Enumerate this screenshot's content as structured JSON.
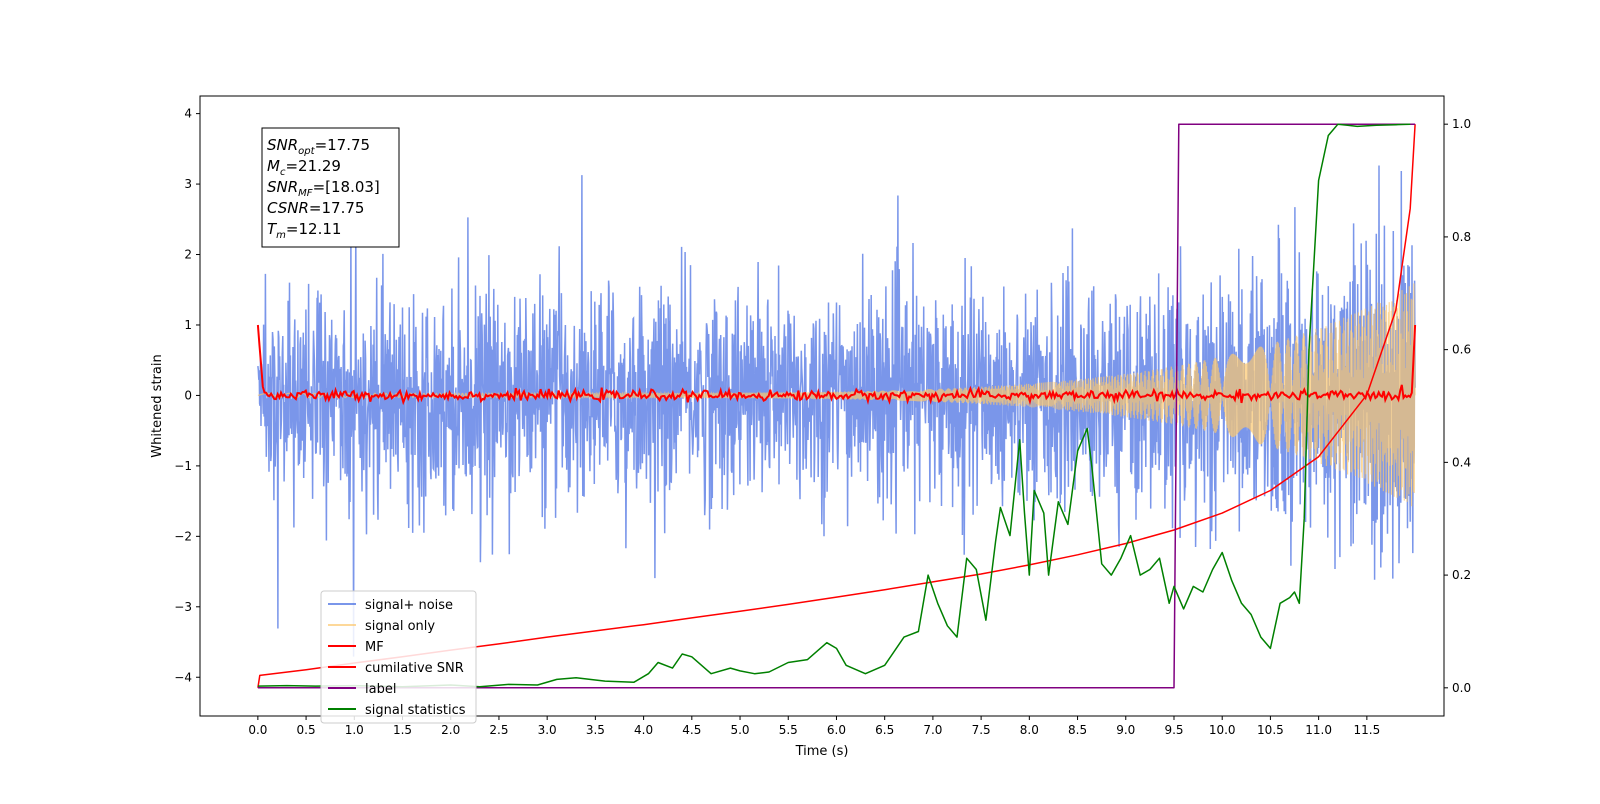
{
  "chart_data": {
    "type": "line",
    "xlabel": "Time (s)",
    "ylabel": "Whitened strain",
    "xlim": [
      -0.6,
      12.3
    ],
    "ylim": [
      -4.55,
      4.25
    ],
    "y2lim": [
      -0.05,
      1.05
    ],
    "x_ticks": [
      "0.0",
      "0.5",
      "1.0",
      "1.5",
      "2.0",
      "2.5",
      "3.0",
      "3.5",
      "4.0",
      "4.5",
      "5.0",
      "5.5",
      "6.0",
      "6.5",
      "7.0",
      "7.5",
      "8.0",
      "8.5",
      "9.0",
      "9.5",
      "10.0",
      "10.5",
      "11.0",
      "11.5"
    ],
    "y_ticks": [
      "4",
      "3",
      "2",
      "1",
      "0",
      "−1",
      "−2",
      "−3",
      "−4"
    ],
    "y2_ticks": [
      "1.0",
      "0.8",
      "0.6",
      "0.4",
      "0.2",
      "0.0"
    ],
    "grid": false,
    "legend_position": "lower-left",
    "annotation": {
      "lines": [
        {
          "sym": "SNR",
          "sub": "opt",
          "value": "=17.75"
        },
        {
          "sym": "M",
          "sub": "c",
          "value": "=21.29"
        },
        {
          "sym": "SNR",
          "sub": "MF",
          "value": "=[18.03]"
        },
        {
          "sym": "CSNR",
          "sub": "",
          "value": "=17.75"
        },
        {
          "sym": "T",
          "sub": "m",
          "value": "=12.11"
        }
      ]
    },
    "series": [
      {
        "name": "signal+ noise",
        "color": "#4169e1",
        "axis": "left",
        "style": "noisy",
        "x_range": [
          0,
          12
        ],
        "noise_sd": 0.75
      },
      {
        "name": "signal only",
        "color": "#fcc86e",
        "axis": "left",
        "style": "chirp",
        "x_range": [
          0,
          12
        ],
        "amplitude_start": 0.03,
        "amplitude_end": 1.6
      },
      {
        "name": "MF",
        "color": "#ff0000",
        "axis": "left",
        "style": "mf",
        "x_range": [
          0,
          12
        ],
        "start": 1.0,
        "end": 1.0,
        "baseline": 0.0
      },
      {
        "name": "cumilative SNR",
        "color": "#ff0000",
        "axis": "right",
        "x": [
          0.0,
          0.02,
          0.5,
          1.0,
          1.5,
          2.0,
          2.5,
          3.0,
          3.5,
          4.0,
          4.5,
          5.0,
          5.5,
          6.0,
          6.5,
          7.0,
          7.5,
          8.0,
          8.5,
          9.0,
          9.5,
          10.0,
          10.5,
          11.0,
          11.5,
          11.8,
          11.95,
          12.0
        ],
        "y": [
          0.0,
          0.022,
          0.032,
          0.044,
          0.055,
          0.067,
          0.078,
          0.09,
          0.101,
          0.112,
          0.124,
          0.136,
          0.148,
          0.161,
          0.174,
          0.188,
          0.202,
          0.218,
          0.236,
          0.256,
          0.28,
          0.31,
          0.35,
          0.41,
          0.52,
          0.67,
          0.85,
          1.0
        ]
      },
      {
        "name": "label",
        "color": "#800080",
        "axis": "right",
        "x": [
          0.0,
          9.5,
          9.55,
          12.0
        ],
        "y": [
          0.0,
          0.0,
          1.0,
          1.0
        ]
      },
      {
        "name": "signal statistics",
        "color": "#008000",
        "axis": "right",
        "x": [
          0.0,
          0.3,
          0.6,
          1.0,
          1.5,
          2.0,
          2.3,
          2.6,
          2.9,
          3.1,
          3.3,
          3.6,
          3.9,
          4.05,
          4.15,
          4.3,
          4.4,
          4.5,
          4.7,
          4.9,
          5.0,
          5.15,
          5.3,
          5.5,
          5.7,
          5.9,
          6.0,
          6.1,
          6.3,
          6.5,
          6.7,
          6.85,
          6.95,
          7.05,
          7.15,
          7.25,
          7.35,
          7.45,
          7.55,
          7.65,
          7.7,
          7.8,
          7.9,
          7.95,
          8.0,
          8.05,
          8.15,
          8.2,
          8.3,
          8.4,
          8.5,
          8.6,
          8.65,
          8.75,
          8.85,
          8.95,
          9.05,
          9.15,
          9.25,
          9.35,
          9.45,
          9.5,
          9.6,
          9.7,
          9.8,
          9.9,
          10.0,
          10.1,
          10.2,
          10.3,
          10.4,
          10.5,
          10.6,
          10.7,
          10.75,
          10.8,
          10.85,
          10.9,
          11.0,
          11.1,
          11.2,
          11.3,
          11.4,
          11.6,
          11.8,
          11.95
        ],
        "y": [
          0.003,
          0.004,
          0.003,
          0.004,
          0.002,
          0.005,
          0.002,
          0.006,
          0.005,
          0.015,
          0.018,
          0.012,
          0.01,
          0.025,
          0.045,
          0.035,
          0.06,
          0.055,
          0.025,
          0.035,
          0.03,
          0.025,
          0.028,
          0.045,
          0.05,
          0.08,
          0.07,
          0.04,
          0.025,
          0.04,
          0.09,
          0.1,
          0.2,
          0.15,
          0.11,
          0.09,
          0.23,
          0.21,
          0.12,
          0.26,
          0.32,
          0.27,
          0.44,
          0.31,
          0.2,
          0.35,
          0.31,
          0.2,
          0.33,
          0.29,
          0.42,
          0.46,
          0.39,
          0.22,
          0.2,
          0.23,
          0.27,
          0.2,
          0.21,
          0.23,
          0.15,
          0.18,
          0.14,
          0.18,
          0.17,
          0.21,
          0.24,
          0.19,
          0.15,
          0.13,
          0.09,
          0.07,
          0.15,
          0.16,
          0.17,
          0.15,
          0.3,
          0.6,
          0.9,
          0.98,
          1.0,
          0.998,
          0.996,
          0.998,
          0.999,
          1.0
        ]
      }
    ]
  }
}
